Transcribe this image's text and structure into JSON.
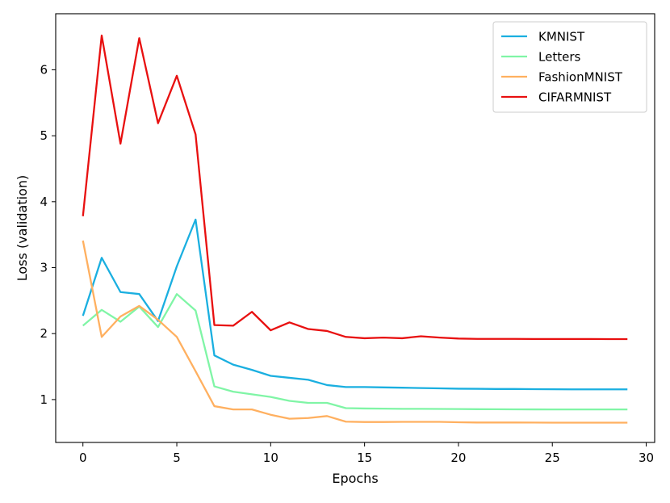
{
  "chart_data": {
    "type": "line",
    "title": "",
    "xlabel": "Epochs",
    "ylabel": "Loss (validation)",
    "xlim": [
      -1.45,
      30.45
    ],
    "ylim": [
      0.35,
      6.85
    ],
    "xticks": [
      0,
      5,
      10,
      15,
      20,
      25,
      30
    ],
    "yticks": [
      1,
      2,
      3,
      4,
      5,
      6
    ],
    "grid": false,
    "legend_position": "top-right",
    "x": [
      0,
      1,
      2,
      3,
      4,
      5,
      6,
      7,
      8,
      9,
      10,
      11,
      12,
      13,
      14,
      15,
      16,
      17,
      18,
      19,
      20,
      21,
      22,
      23,
      24,
      25,
      26,
      27,
      28,
      29
    ],
    "series": [
      {
        "name": "KMNIST",
        "color": "#1aafe0",
        "values": [
          2.27,
          3.15,
          2.63,
          2.6,
          2.19,
          3.02,
          3.73,
          1.67,
          1.53,
          1.45,
          1.36,
          1.33,
          1.3,
          1.22,
          1.19,
          1.19,
          1.185,
          1.18,
          1.175,
          1.17,
          1.165,
          1.163,
          1.16,
          1.16,
          1.158,
          1.156,
          1.155,
          1.155,
          1.155,
          1.155
        ]
      },
      {
        "name": "Letters",
        "color": "#80f5a6",
        "values": [
          2.12,
          2.36,
          2.18,
          2.41,
          2.1,
          2.6,
          2.35,
          1.2,
          1.12,
          1.08,
          1.04,
          0.98,
          0.95,
          0.95,
          0.87,
          0.865,
          0.863,
          0.86,
          0.86,
          0.858,
          0.856,
          0.854,
          0.853,
          0.852,
          0.851,
          0.85,
          0.85,
          0.85,
          0.85,
          0.85
        ]
      },
      {
        "name": "FashionMNIST",
        "color": "#ffb060",
        "values": [
          3.41,
          1.95,
          2.26,
          2.42,
          2.21,
          1.95,
          1.43,
          0.9,
          0.85,
          0.85,
          0.77,
          0.71,
          0.72,
          0.75,
          0.665,
          0.66,
          0.66,
          0.662,
          0.662,
          0.662,
          0.656,
          0.652,
          0.652,
          0.652,
          0.651,
          0.65,
          0.65,
          0.65,
          0.65,
          0.65
        ]
      },
      {
        "name": "CIFARMNIST",
        "color": "#e81010",
        "values": [
          3.78,
          6.52,
          4.88,
          6.48,
          5.19,
          5.91,
          5.02,
          2.13,
          2.12,
          2.33,
          2.05,
          2.17,
          2.07,
          2.04,
          1.95,
          1.93,
          1.94,
          1.93,
          1.96,
          1.94,
          1.925,
          1.92,
          1.92,
          1.92,
          1.918,
          1.918,
          1.918,
          1.918,
          1.917,
          1.917
        ]
      }
    ]
  }
}
